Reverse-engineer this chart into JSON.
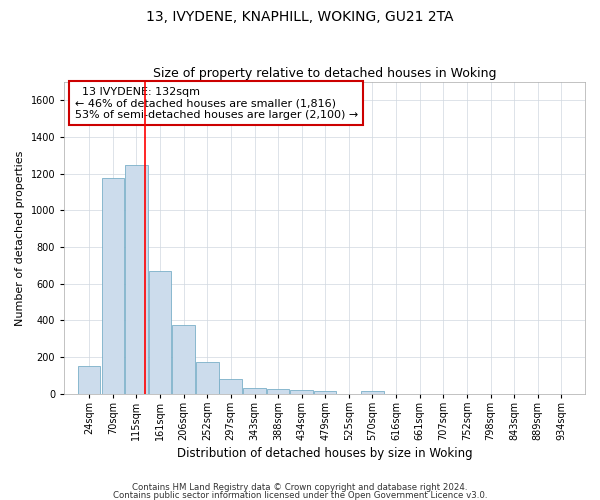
{
  "title1": "13, IVYDENE, KNAPHILL, WOKING, GU21 2TA",
  "title2": "Size of property relative to detached houses in Woking",
  "xlabel": "Distribution of detached houses by size in Woking",
  "ylabel": "Number of detached properties",
  "footer1": "Contains HM Land Registry data © Crown copyright and database right 2024.",
  "footer2": "Contains public sector information licensed under the Open Government Licence v3.0.",
  "annotation_line1": "  13 IVYDENE: 132sqm",
  "annotation_line2": "← 46% of detached houses are smaller (1,816)",
  "annotation_line3": "53% of semi-detached houses are larger (2,100) →",
  "property_size": 132,
  "categories": [
    "24sqm",
    "70sqm",
    "115sqm",
    "161sqm",
    "206sqm",
    "252sqm",
    "297sqm",
    "343sqm",
    "388sqm",
    "434sqm",
    "479sqm",
    "525sqm",
    "570sqm",
    "616sqm",
    "661sqm",
    "707sqm",
    "752sqm",
    "798sqm",
    "843sqm",
    "889sqm",
    "934sqm"
  ],
  "bin_centers": [
    24,
    70,
    115,
    161,
    206,
    252,
    297,
    343,
    388,
    434,
    479,
    525,
    570,
    616,
    661,
    707,
    752,
    798,
    843,
    889,
    934
  ],
  "bin_width": 45,
  "values": [
    150,
    1175,
    1250,
    670,
    375,
    170,
    80,
    30,
    25,
    20,
    15,
    0,
    15,
    0,
    0,
    0,
    0,
    0,
    0,
    0,
    0
  ],
  "bar_color": "#ccdcec",
  "bar_edge_color": "#7aafc8",
  "red_line_x": 132,
  "ylim": [
    0,
    1700
  ],
  "yticks": [
    0,
    200,
    400,
    600,
    800,
    1000,
    1200,
    1400,
    1600
  ],
  "xlim_left": -24,
  "xlim_right": 980,
  "grid_color": "#d0d8e0",
  "annotation_box_color": "#cc0000",
  "title1_fontsize": 10,
  "title2_fontsize": 9,
  "xlabel_fontsize": 8.5,
  "ylabel_fontsize": 8,
  "tick_fontsize": 7,
  "annotation_fontsize": 8
}
